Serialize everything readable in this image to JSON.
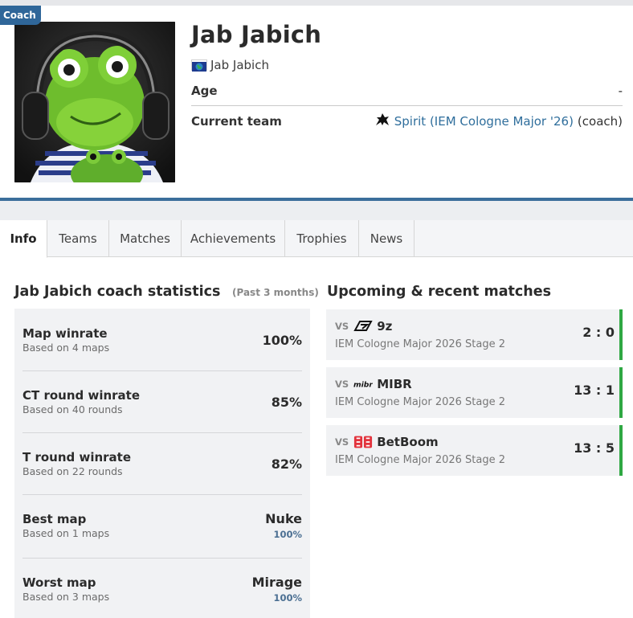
{
  "badge": "Coach",
  "player": {
    "name": "Jab Jabich",
    "real_name": "Jab Jabich",
    "flag_icon": "world-flag-icon",
    "avatar_icon": "frog-plush-with-headphones"
  },
  "info": {
    "age_label": "Age",
    "age_value": "-",
    "team_label": "Current team",
    "team_icon": "spirit-logo-icon",
    "team_link": "Spirit (IEM Cologne Major '26)",
    "team_suffix": "(coach)"
  },
  "tabs": [
    {
      "label": "Info",
      "active": true
    },
    {
      "label": "Teams",
      "active": false
    },
    {
      "label": "Matches",
      "active": false
    },
    {
      "label": "Achievements",
      "active": false
    },
    {
      "label": "Trophies",
      "active": false
    },
    {
      "label": "News",
      "active": false
    }
  ],
  "stats": {
    "title": "Jab Jabich coach statistics",
    "period": "(Past 3 months)",
    "rows": [
      {
        "title": "Map winrate",
        "sub": "Based on 4 maps",
        "value": "100%"
      },
      {
        "title": "CT round winrate",
        "sub": "Based on 40 rounds",
        "value": "85%"
      },
      {
        "title": "T round winrate",
        "sub": "Based on 22 rounds",
        "value": "82%"
      },
      {
        "title": "Best map",
        "sub": "Based on 1 maps",
        "value": "Nuke",
        "pct": "100%"
      },
      {
        "title": "Worst map",
        "sub": "Based on 3 maps",
        "value": "Mirage",
        "pct": "100%"
      }
    ]
  },
  "matches": {
    "title": "Upcoming & recent matches",
    "items": [
      {
        "vs": "VS",
        "opponent": "9z",
        "opponent_icon": "9z-logo-icon",
        "event": "IEM Cologne Major 2026 Stage 2",
        "score": "2 : 0"
      },
      {
        "vs": "VS",
        "opponent": "MIBR",
        "opponent_icon": "mibr-logo-icon",
        "event": "IEM Cologne Major 2026 Stage 2",
        "score": "13 : 1"
      },
      {
        "vs": "VS",
        "opponent": "BetBoom",
        "opponent_icon": "betboom-logo-icon",
        "event": "IEM Cologne Major 2026 Stage 2",
        "score": "13 : 5"
      }
    ]
  },
  "colors": {
    "accent": "#3b6e9b",
    "badge": "#2f6699",
    "link": "#2f6e9c",
    "win": "#2fa843"
  }
}
